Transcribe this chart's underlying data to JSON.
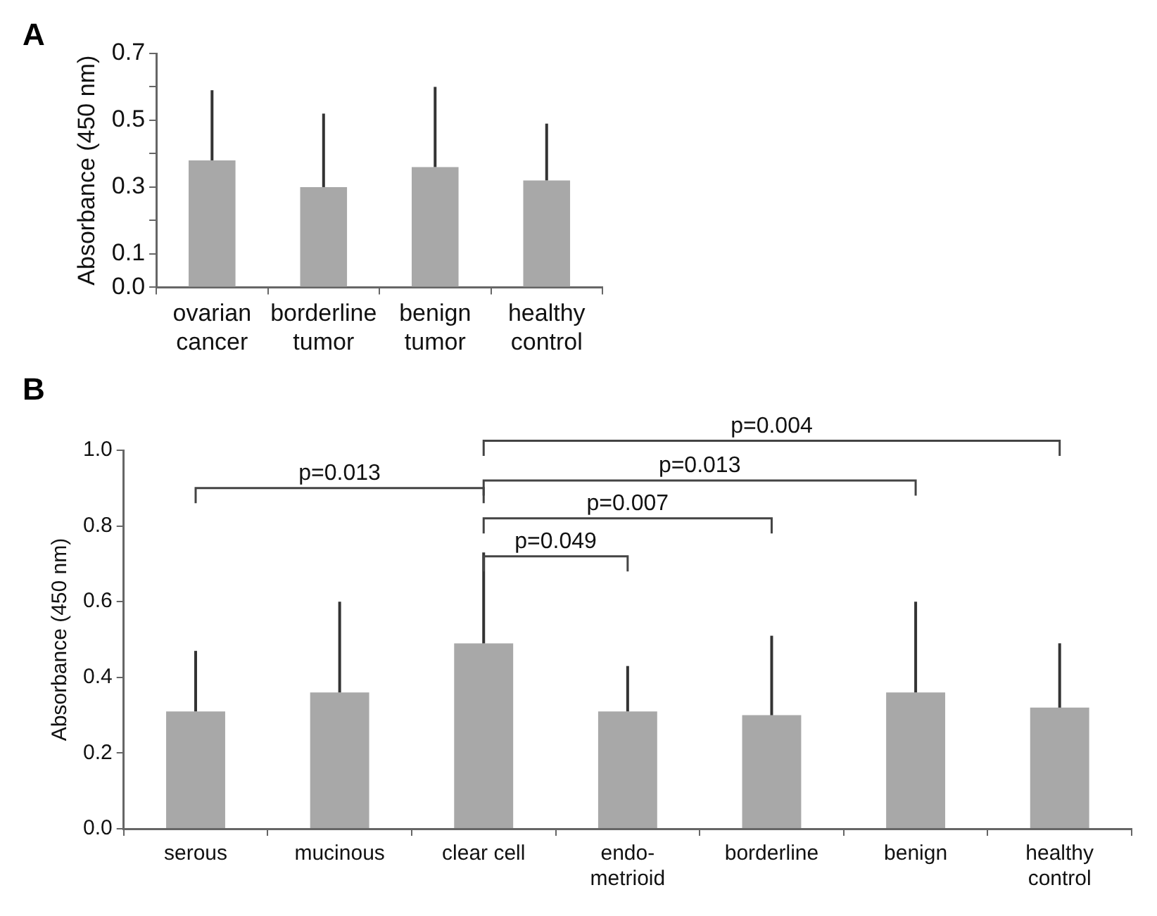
{
  "chart_data": [
    {
      "type": "bar",
      "title": "A",
      "ylabel": "Absorbance (450 nm)",
      "categories": [
        "ovarian cancer",
        "borderline tumor",
        "benign tumor",
        "healthy control"
      ],
      "values": [
        0.38,
        0.3,
        0.36,
        0.32
      ],
      "color": "#a8a8a8",
      "errors": [
        [
          0.38,
          0.59
        ],
        [
          0.3,
          0.52
        ],
        [
          0.36,
          0.6
        ],
        [
          0.32,
          0.49
        ]
      ],
      "ylim": [
        0,
        0.7
      ],
      "yticks": [
        {
          "value": 0,
          "label": "0.0"
        },
        {
          "value": 0.1,
          "label": "0.1"
        },
        {
          "value": 0.2,
          "label": null
        },
        {
          "value": 0.3,
          "label": "0.3"
        },
        {
          "value": 0.4,
          "label": null
        },
        {
          "value": 0.5,
          "label": "0.5"
        },
        {
          "value": 0.6,
          "label": null
        },
        {
          "value": 0.7,
          "label": "0.7"
        }
      ]
    },
    {
      "type": "bar",
      "title": "B",
      "ylabel": "Absorbance (450 nm)",
      "categories": [
        "serous",
        "mucinous",
        "clear cell",
        "endo-metrioid",
        "borderline",
        "benign",
        "healthy control"
      ],
      "values": [
        0.31,
        0.36,
        0.49,
        0.31,
        0.3,
        0.36,
        0.32
      ],
      "color": "#a8a8a8",
      "errors": [
        [
          0.31,
          0.47
        ],
        [
          0.36,
          0.6
        ],
        [
          0.49,
          0.73
        ],
        [
          0.31,
          0.43
        ],
        [
          0.3,
          0.51
        ],
        [
          0.36,
          0.6
        ],
        [
          0.32,
          0.49
        ]
      ],
      "ylim": [
        0,
        1.0
      ],
      "yticks": [
        {
          "value": 0,
          "label": "0.0"
        },
        {
          "value": 0.2,
          "label": "0.2"
        },
        {
          "value": 0.4,
          "label": "0.4"
        },
        {
          "value": 0.6,
          "label": "0.6"
        },
        {
          "value": 0.8,
          "label": "0.8"
        },
        {
          "value": 1.0,
          "label": "1.0"
        }
      ],
      "annotations": [
        "p=0.013",
        "p=0.049",
        "p=0.007",
        "p=0.013",
        "p=0.004"
      ]
    }
  ]
}
